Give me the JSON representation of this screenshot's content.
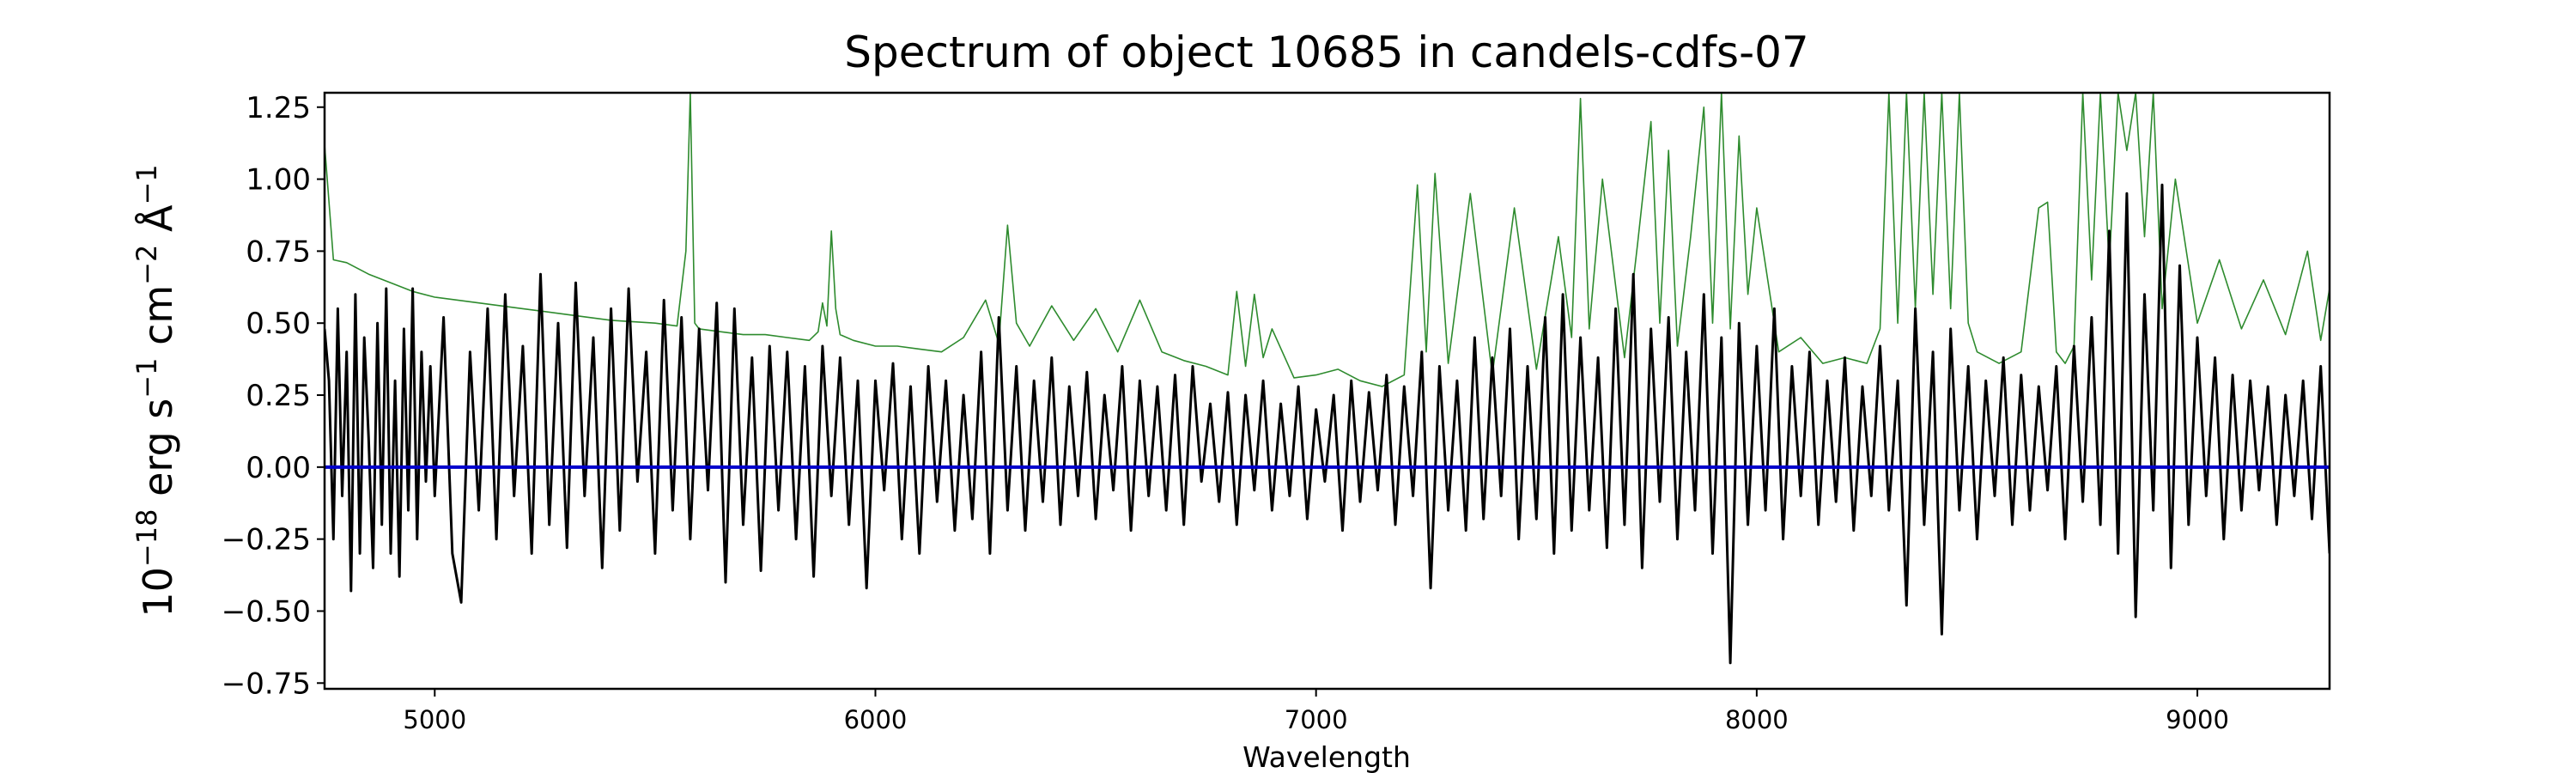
{
  "chart_data": {
    "type": "line",
    "title": "Spectrum of object 10685 in candels-cdfs-07",
    "xlabel": "Wavelength",
    "ylabel": "10^-18 erg s^-1 cm^-2 Å^-1",
    "ylabel_parts": {
      "base1": "10",
      "exp1": "−18",
      "unit1": " erg s",
      "exp2": "−1",
      "unit2": " cm",
      "exp3": "−2",
      "unit3": " Å",
      "exp4": "−1"
    },
    "xlim": [
      4750,
      9300
    ],
    "ylim": [
      -0.77,
      1.3
    ],
    "x_ticks": [
      5000,
      6000,
      7000,
      8000,
      9000
    ],
    "x_tick_labels": [
      "5000",
      "6000",
      "7000",
      "8000",
      "9000"
    ],
    "y_ticks": [
      -0.75,
      -0.5,
      -0.25,
      0.0,
      0.25,
      0.5,
      0.75,
      1.0,
      1.25
    ],
    "y_tick_labels": [
      "−0.75",
      "−0.50",
      "−0.25",
      "0.00",
      "0.25",
      "0.50",
      "0.75",
      "1.00",
      "1.25"
    ],
    "grid": false,
    "zero_line": 0.0,
    "colors": {
      "flux": "#000000",
      "error": "#2e8b2e",
      "zero": "#0000cc"
    },
    "series": [
      {
        "role": "error",
        "x": [
          4750,
          4770,
          4800,
          4850,
          4900,
          4950,
          5000,
          5100,
          5200,
          5300,
          5400,
          5500,
          5550,
          5570,
          5580,
          5590,
          5600,
          5650,
          5700,
          5750,
          5800,
          5850,
          5870,
          5880,
          5890,
          5900,
          5910,
          5920,
          5950,
          6000,
          6050,
          6100,
          6150,
          6200,
          6250,
          6280,
          6300,
          6320,
          6350,
          6400,
          6450,
          6500,
          6550,
          6600,
          6650,
          6700,
          6750,
          6800,
          6820,
          6840,
          6860,
          6880,
          6900,
          6950,
          7000,
          7050,
          7100,
          7150,
          7200,
          7230,
          7250,
          7270,
          7300,
          7350,
          7400,
          7450,
          7500,
          7550,
          7580,
          7600,
          7620,
          7650,
          7700,
          7730,
          7760,
          7780,
          7800,
          7820,
          7850,
          7880,
          7900,
          7920,
          7940,
          7960,
          7980,
          8000,
          8050,
          8100,
          8150,
          8200,
          8250,
          8280,
          8300,
          8320,
          8340,
          8360,
          8380,
          8400,
          8420,
          8440,
          8460,
          8480,
          8500,
          8550,
          8600,
          8640,
          8660,
          8680,
          8700,
          8720,
          8740,
          8760,
          8780,
          8800,
          8820,
          8840,
          8860,
          8880,
          8900,
          8920,
          8950,
          9000,
          9050,
          9100,
          9150,
          9200,
          9250,
          9280,
          9300
        ],
        "y": [
          1.12,
          0.72,
          0.71,
          0.67,
          0.64,
          0.61,
          0.59,
          0.57,
          0.55,
          0.53,
          0.51,
          0.5,
          0.49,
          0.75,
          1.3,
          0.5,
          0.48,
          0.47,
          0.46,
          0.46,
          0.45,
          0.44,
          0.47,
          0.57,
          0.49,
          0.82,
          0.55,
          0.46,
          0.44,
          0.42,
          0.42,
          0.41,
          0.4,
          0.45,
          0.58,
          0.43,
          0.84,
          0.5,
          0.42,
          0.56,
          0.44,
          0.55,
          0.4,
          0.58,
          0.4,
          0.37,
          0.35,
          0.32,
          0.61,
          0.35,
          0.6,
          0.38,
          0.48,
          0.31,
          0.32,
          0.34,
          0.3,
          0.28,
          0.32,
          0.98,
          0.4,
          1.02,
          0.36,
          0.95,
          0.32,
          0.9,
          0.34,
          0.8,
          0.45,
          1.28,
          0.48,
          1.0,
          0.38,
          0.78,
          1.2,
          0.5,
          1.1,
          0.42,
          0.8,
          1.25,
          0.5,
          1.3,
          0.48,
          1.15,
          0.6,
          0.9,
          0.4,
          0.45,
          0.36,
          0.38,
          0.36,
          0.48,
          1.3,
          0.5,
          1.3,
          0.55,
          1.3,
          0.6,
          1.3,
          0.55,
          1.3,
          0.5,
          0.4,
          0.36,
          0.4,
          0.9,
          0.92,
          0.4,
          0.36,
          0.42,
          1.3,
          0.65,
          1.3,
          0.7,
          1.3,
          1.1,
          1.3,
          0.8,
          1.3,
          0.55,
          1.0,
          0.5,
          0.72,
          0.48,
          0.65,
          0.46,
          0.75,
          0.44,
          0.62
        ]
      },
      {
        "role": "flux",
        "x": [
          4750,
          4760,
          4770,
          4780,
          4790,
          4800,
          4810,
          4820,
          4830,
          4840,
          4850,
          4860,
          4870,
          4880,
          4890,
          4900,
          4910,
          4920,
          4930,
          4940,
          4950,
          4960,
          4970,
          4980,
          4990,
          5000,
          5020,
          5040,
          5060,
          5080,
          5100,
          5120,
          5140,
          5160,
          5180,
          5200,
          5220,
          5240,
          5260,
          5280,
          5300,
          5320,
          5340,
          5360,
          5380,
          5400,
          5420,
          5440,
          5460,
          5480,
          5500,
          5520,
          5540,
          5560,
          5580,
          5600,
          5620,
          5640,
          5660,
          5680,
          5700,
          5720,
          5740,
          5760,
          5780,
          5800,
          5820,
          5840,
          5860,
          5880,
          5900,
          5920,
          5940,
          5960,
          5980,
          6000,
          6020,
          6040,
          6060,
          6080,
          6100,
          6120,
          6140,
          6160,
          6180,
          6200,
          6220,
          6240,
          6260,
          6280,
          6300,
          6320,
          6340,
          6360,
          6380,
          6400,
          6420,
          6440,
          6460,
          6480,
          6500,
          6520,
          6540,
          6560,
          6580,
          6600,
          6620,
          6640,
          6660,
          6680,
          6700,
          6720,
          6740,
          6760,
          6780,
          6800,
          6820,
          6840,
          6860,
          6880,
          6900,
          6920,
          6940,
          6960,
          6980,
          7000,
          7020,
          7040,
          7060,
          7080,
          7100,
          7120,
          7140,
          7160,
          7180,
          7200,
          7220,
          7240,
          7260,
          7280,
          7300,
          7320,
          7340,
          7360,
          7380,
          7400,
          7420,
          7440,
          7460,
          7480,
          7500,
          7520,
          7540,
          7560,
          7580,
          7600,
          7620,
          7640,
          7660,
          7680,
          7700,
          7720,
          7740,
          7760,
          7780,
          7800,
          7820,
          7840,
          7860,
          7880,
          7900,
          7920,
          7940,
          7960,
          7980,
          8000,
          8020,
          8040,
          8060,
          8080,
          8100,
          8120,
          8140,
          8160,
          8180,
          8200,
          8220,
          8240,
          8260,
          8280,
          8300,
          8320,
          8340,
          8360,
          8380,
          8400,
          8420,
          8440,
          8460,
          8480,
          8500,
          8520,
          8540,
          8560,
          8580,
          8600,
          8620,
          8640,
          8660,
          8680,
          8700,
          8720,
          8740,
          8760,
          8780,
          8800,
          8820,
          8840,
          8860,
          8880,
          8900,
          8920,
          8940,
          8960,
          8980,
          9000,
          9020,
          9040,
          9060,
          9080,
          9100,
          9120,
          9140,
          9160,
          9180,
          9200,
          9220,
          9240,
          9260,
          9280,
          9300
        ],
        "y": [
          0.48,
          0.3,
          -0.25,
          0.55,
          -0.1,
          0.4,
          -0.43,
          0.6,
          -0.3,
          0.45,
          0.1,
          -0.35,
          0.5,
          -0.2,
          0.62,
          -0.3,
          0.3,
          -0.38,
          0.48,
          -0.15,
          0.62,
          -0.25,
          0.4,
          -0.05,
          0.35,
          -0.1,
          0.52,
          -0.3,
          -0.47,
          0.4,
          -0.15,
          0.55,
          -0.25,
          0.6,
          -0.1,
          0.42,
          -0.3,
          0.67,
          -0.2,
          0.5,
          -0.28,
          0.64,
          -0.1,
          0.45,
          -0.35,
          0.55,
          -0.22,
          0.62,
          -0.05,
          0.4,
          -0.3,
          0.58,
          -0.15,
          0.52,
          -0.25,
          0.48,
          -0.08,
          0.57,
          -0.4,
          0.55,
          -0.2,
          0.38,
          -0.36,
          0.42,
          -0.15,
          0.4,
          -0.25,
          0.35,
          -0.38,
          0.42,
          -0.1,
          0.38,
          -0.2,
          0.3,
          -0.42,
          0.3,
          -0.08,
          0.36,
          -0.25,
          0.28,
          -0.3,
          0.35,
          -0.12,
          0.3,
          -0.22,
          0.25,
          -0.18,
          0.4,
          -0.3,
          0.52,
          -0.15,
          0.35,
          -0.22,
          0.3,
          -0.12,
          0.38,
          -0.2,
          0.28,
          -0.1,
          0.33,
          -0.18,
          0.25,
          -0.08,
          0.35,
          -0.22,
          0.3,
          -0.1,
          0.28,
          -0.15,
          0.32,
          -0.2,
          0.35,
          -0.05,
          0.22,
          -0.12,
          0.26,
          -0.2,
          0.25,
          -0.08,
          0.3,
          -0.15,
          0.22,
          -0.1,
          0.28,
          -0.18,
          0.2,
          -0.05,
          0.25,
          -0.22,
          0.3,
          -0.12,
          0.26,
          -0.08,
          0.32,
          -0.2,
          0.28,
          -0.1,
          0.4,
          -0.42,
          0.35,
          -0.15,
          0.3,
          -0.22,
          0.45,
          -0.18,
          0.38,
          -0.1,
          0.48,
          -0.25,
          0.35,
          -0.18,
          0.52,
          -0.3,
          0.6,
          -0.22,
          0.45,
          -0.15,
          0.38,
          -0.28,
          0.55,
          -0.2,
          0.67,
          -0.35,
          0.48,
          -0.12,
          0.52,
          -0.25,
          0.4,
          -0.15,
          0.6,
          -0.3,
          0.45,
          -0.68,
          0.5,
          -0.2,
          0.42,
          -0.15,
          0.55,
          -0.25,
          0.35,
          -0.1,
          0.4,
          -0.2,
          0.3,
          -0.12,
          0.38,
          -0.22,
          0.28,
          -0.1,
          0.42,
          -0.15,
          0.3,
          -0.48,
          0.55,
          -0.2,
          0.4,
          -0.58,
          0.48,
          -0.15,
          0.35,
          -0.25,
          0.3,
          -0.1,
          0.38,
          -0.2,
          0.32,
          -0.15,
          0.28,
          -0.08,
          0.35,
          -0.25,
          0.42,
          -0.12,
          0.52,
          -0.2,
          0.82,
          -0.3,
          0.95,
          -0.52,
          0.6,
          -0.15,
          0.98,
          -0.35,
          0.7,
          -0.2,
          0.45,
          -0.1,
          0.38,
          -0.25,
          0.32,
          -0.15,
          0.3,
          -0.08,
          0.28,
          -0.2,
          0.25,
          -0.1,
          0.3,
          -0.18,
          0.35,
          -0.3
        ]
      }
    ]
  }
}
